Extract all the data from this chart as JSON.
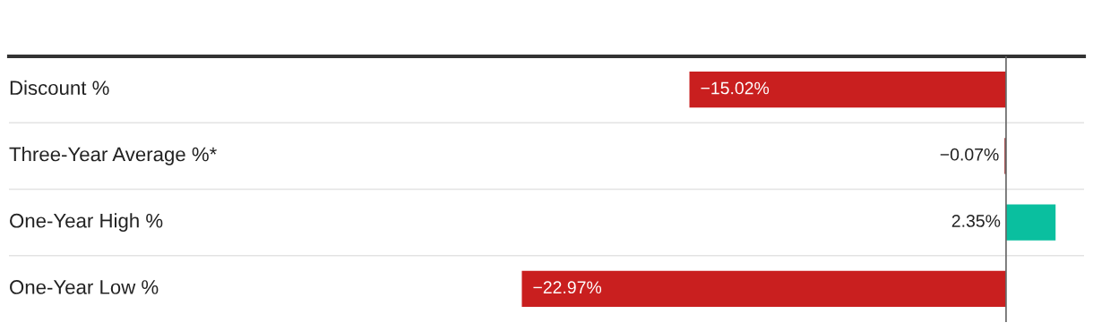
{
  "chart_data": {
    "type": "bar",
    "orientation": "horizontal",
    "categories": [
      "Discount %",
      "Three-Year Average %*",
      "One-Year High %",
      "One-Year Low %"
    ],
    "values": [
      -15.02,
      -0.07,
      2.35,
      -22.97
    ],
    "colors": [
      "#c91f1f",
      "#8b1a1a",
      "#0abf9f",
      "#c91f1f"
    ],
    "value_labels": [
      "−15.02%",
      "−0.07%",
      "2.35%",
      "−22.97%"
    ],
    "xlim": [
      -47.3,
      3.7
    ]
  }
}
